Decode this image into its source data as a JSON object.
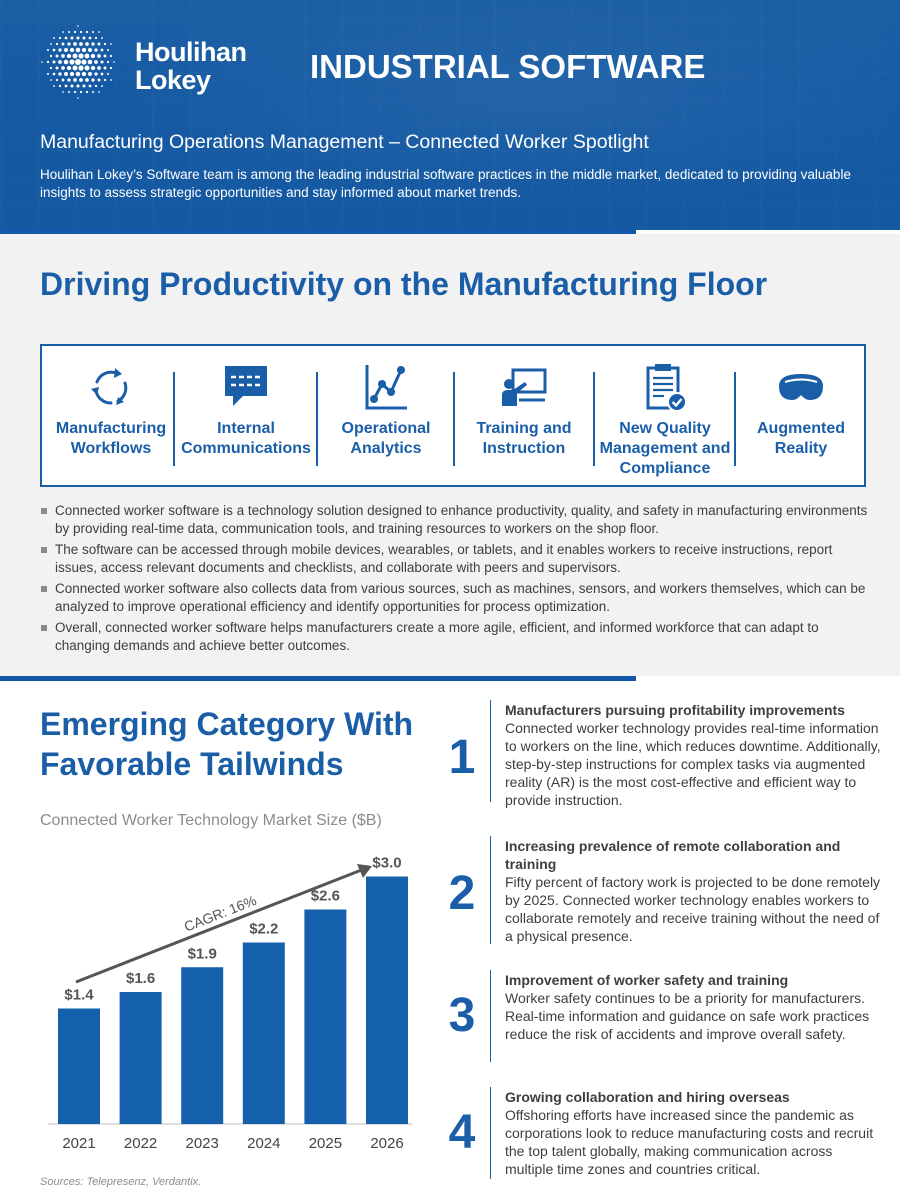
{
  "header": {
    "logo_line1": "Houlihan",
    "logo_line2": "Lokey",
    "title": "INDUSTRIAL SOFTWARE",
    "subtitle": "Manufacturing Operations Management – Connected Worker Spotlight",
    "description": "Houlihan Lokey’s Software team is among the leading industrial software practices in the middle market, dedicated to providing valuable insights to assess strategic opportunities and stay informed about market trends."
  },
  "section1": {
    "title": "Driving Productivity on the Manufacturing Floor",
    "cards": [
      {
        "label": "Manufacturing Workflows",
        "icon": "cycle-arrows-icon"
      },
      {
        "label": "Internal Communications",
        "icon": "chat-bubble-icon"
      },
      {
        "label": "Operational Analytics",
        "icon": "line-graph-icon"
      },
      {
        "label": "Training and Instruction",
        "icon": "presenter-board-icon"
      },
      {
        "label": "New Quality Management and Compliance",
        "icon": "checklist-clipboard-icon"
      },
      {
        "label": "Augmented Reality",
        "icon": "ar-headset-icon"
      }
    ],
    "bullets": [
      "Connected worker software is a technology solution designed to enhance productivity, quality, and safety in manufacturing environments by providing real-time data, communication tools, and training resources to workers on the shop floor.",
      "The software can be accessed through mobile devices, wearables, or tablets, and it enables workers to receive instructions, report issues, access relevant documents and checklists, and collaborate with peers and supervisors.",
      "Connected worker software also collects data from various sources, such as machines, sensors, and workers themselves, which can be analyzed to improve operational efficiency and identify opportunities for process optimization.",
      "Overall, connected worker software helps manufacturers create a more agile, efficient, and informed workforce that can adapt to changing demands and achieve better outcomes."
    ]
  },
  "section2": {
    "title": "Emerging Category With Favorable Tailwinds",
    "sources": "Sources: Telepresenz, Verdantix.",
    "items": [
      {
        "num": "1",
        "heading": "Manufacturers pursuing profitability improvements",
        "body": "Connected worker technology provides real-time information to workers on the line, which reduces downtime. Additionally, step-by-step instructions for complex tasks via augmented reality (AR) is the most cost-effective and efficient way to provide instruction."
      },
      {
        "num": "2",
        "heading": "Increasing prevalence of remote collaboration and training",
        "body": "Fifty percent of factory work is projected to be done remotely by 2025. Connected worker technology enables workers to collaborate remotely and receive training without the need of a physical presence."
      },
      {
        "num": "3",
        "heading": "Improvement of worker safety and training",
        "body": "Worker safety continues to be a priority for manufacturers. Real-time information and guidance on safe work practices reduce the risk of accidents and improve overall safety."
      },
      {
        "num": "4",
        "heading": "Growing collaboration and hiring overseas",
        "body": "Offshoring efforts have increased since the pandemic as corporations look to reduce manufacturing costs and recruit the top talent globally, making communication across multiple time zones and countries critical."
      }
    ]
  },
  "chart_data": {
    "type": "bar",
    "title": "Connected Worker Technology Market Size ($B)",
    "categories": [
      "2021",
      "2022",
      "2023",
      "2024",
      "2025",
      "2026"
    ],
    "values": [
      1.4,
      1.6,
      1.9,
      2.2,
      2.6,
      3.0
    ],
    "value_labels": [
      "$1.4",
      "$1.6",
      "$1.9",
      "$2.2",
      "$2.6",
      "$3.0"
    ],
    "annotation": "CAGR: 16%",
    "bar_color": "#1560ac",
    "ylim": [
      0,
      3.2
    ],
    "grid": false,
    "legend": "none"
  },
  "colors": {
    "brand_blue": "#1a5ea8",
    "bar_blue": "#1560ac",
    "background_gray": "#f2f2f2"
  }
}
